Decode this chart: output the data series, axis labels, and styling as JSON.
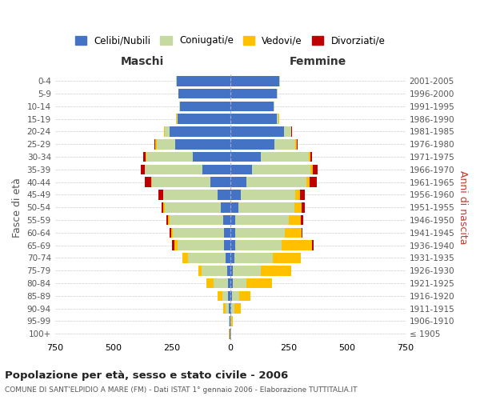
{
  "age_groups": [
    "100+",
    "95-99",
    "90-94",
    "85-89",
    "80-84",
    "75-79",
    "70-74",
    "65-69",
    "60-64",
    "55-59",
    "50-54",
    "45-49",
    "40-44",
    "35-39",
    "30-34",
    "25-29",
    "20-24",
    "15-19",
    "10-14",
    "5-9",
    "0-4"
  ],
  "birth_years": [
    "≤ 1905",
    "1906-1910",
    "1911-1915",
    "1916-1920",
    "1921-1925",
    "1926-1930",
    "1931-1935",
    "1936-1940",
    "1941-1945",
    "1946-1950",
    "1951-1955",
    "1956-1960",
    "1961-1965",
    "1966-1970",
    "1971-1975",
    "1976-1980",
    "1981-1985",
    "1986-1990",
    "1991-1995",
    "1996-2000",
    "2001-2005"
  ],
  "maschi": {
    "celibi": [
      2,
      2,
      5,
      8,
      10,
      12,
      20,
      25,
      25,
      30,
      40,
      55,
      85,
      120,
      160,
      235,
      260,
      225,
      215,
      220,
      230
    ],
    "coniugati": [
      2,
      3,
      15,
      25,
      60,
      110,
      160,
      200,
      220,
      230,
      240,
      230,
      250,
      245,
      200,
      80,
      20,
      5,
      3,
      2,
      2
    ],
    "vedovi": [
      1,
      2,
      10,
      20,
      30,
      15,
      25,
      15,
      8,
      5,
      5,
      3,
      2,
      2,
      3,
      5,
      2,
      1,
      0,
      0,
      0
    ],
    "divorziati": [
      0,
      0,
      0,
      0,
      0,
      0,
      0,
      8,
      5,
      8,
      10,
      20,
      30,
      15,
      8,
      5,
      2,
      0,
      0,
      0,
      0
    ]
  },
  "femmine": {
    "nubili": [
      2,
      2,
      5,
      8,
      10,
      12,
      18,
      20,
      20,
      22,
      35,
      45,
      70,
      95,
      130,
      190,
      230,
      200,
      185,
      200,
      210
    ],
    "coniugate": [
      2,
      3,
      12,
      30,
      60,
      120,
      165,
      200,
      215,
      230,
      240,
      235,
      255,
      250,
      205,
      90,
      30,
      8,
      3,
      2,
      2
    ],
    "vedove": [
      1,
      5,
      30,
      50,
      110,
      130,
      120,
      130,
      70,
      50,
      30,
      20,
      15,
      10,
      8,
      5,
      2,
      1,
      0,
      0,
      0
    ],
    "divorziate": [
      0,
      0,
      0,
      0,
      0,
      0,
      0,
      8,
      5,
      10,
      15,
      18,
      30,
      20,
      8,
      5,
      2,
      0,
      0,
      0,
      0
    ]
  },
  "colors": {
    "celibi": "#4472c4",
    "coniugati": "#c5d9a0",
    "vedovi": "#ffc000",
    "divorziati": "#c00000"
  },
  "xlim": 750,
  "title": "Popolazione per età, sesso e stato civile - 2006",
  "subtitle": "COMUNE DI SANT'ELPIDIO A MARE (FM) - Dati ISTAT 1° gennaio 2006 - Elaborazione TUTTITALIA.IT",
  "ylabel_left": "Fasce di età",
  "ylabel_right": "Anni di nascita",
  "xlabel_left": "Maschi",
  "xlabel_right": "Femmine",
  "legend_labels": [
    "Celibi/Nubili",
    "Coniugati/e",
    "Vedovi/e",
    "Divorziati/e"
  ],
  "background_color": "#ffffff",
  "bar_height": 0.8
}
